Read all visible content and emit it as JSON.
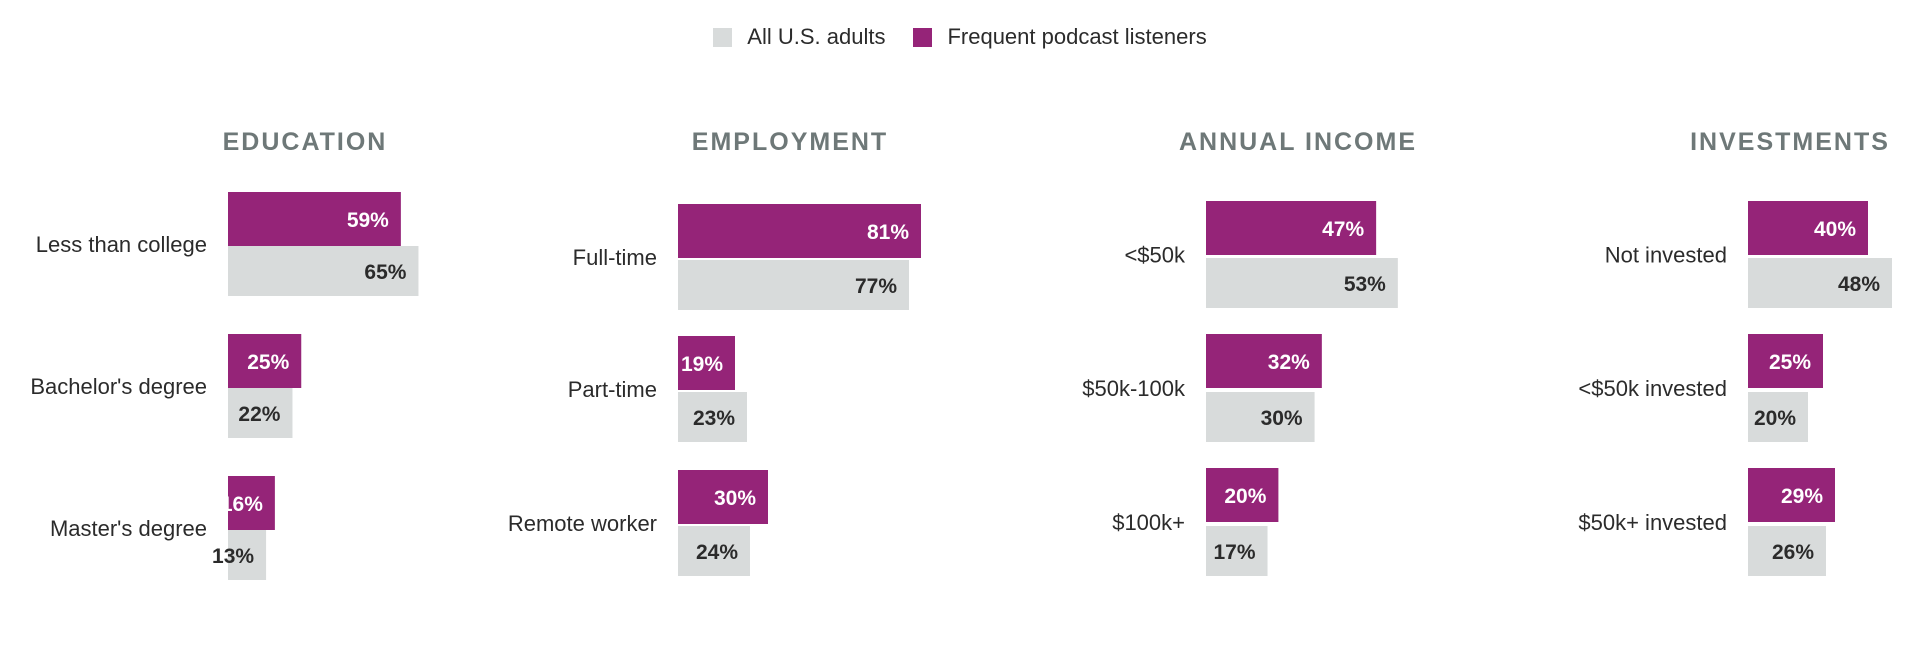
{
  "legend": [
    {
      "label": "All U.S. adults",
      "color": "#d8dbdb"
    },
    {
      "label": "Frequent podcast listeners",
      "color": "#952478"
    }
  ],
  "chart_data": [
    {
      "type": "bar",
      "orientation": "horizontal",
      "title": "EDUCATION",
      "categories": [
        "Less than college",
        "Bachelor's degree",
        "Master's degree"
      ],
      "series": [
        {
          "name": "Frequent podcast listeners",
          "values": [
            59,
            25,
            16
          ],
          "labels": [
            "59%",
            "25%",
            "16%"
          ]
        },
        {
          "name": "All U.S. adults",
          "values": [
            65,
            22,
            13
          ],
          "labels": [
            "65%",
            "22%",
            "13%"
          ]
        }
      ]
    },
    {
      "type": "bar",
      "orientation": "horizontal",
      "title": "EMPLOYMENT",
      "categories": [
        "Full-time",
        "Part-time",
        "Remote worker"
      ],
      "series": [
        {
          "name": "Frequent podcast listeners",
          "values": [
            81,
            19,
            30
          ],
          "labels": [
            "81%",
            "19%",
            "30%"
          ]
        },
        {
          "name": "All U.S. adults",
          "values": [
            77,
            23,
            24
          ],
          "labels": [
            "77%",
            "23%",
            "24%"
          ]
        }
      ]
    },
    {
      "type": "bar",
      "orientation": "horizontal",
      "title": "ANNUAL INCOME",
      "categories": [
        "<$50k",
        "$50k-100k",
        "$100k+"
      ],
      "series": [
        {
          "name": "Frequent podcast listeners",
          "values": [
            47,
            32,
            20
          ],
          "labels": [
            "47%",
            "32%",
            "20%"
          ]
        },
        {
          "name": "All U.S. adults",
          "values": [
            53,
            30,
            17
          ],
          "labels": [
            "53%",
            "30%",
            "17%"
          ]
        }
      ]
    },
    {
      "type": "bar",
      "orientation": "horizontal",
      "title": "INVESTMENTS",
      "categories": [
        "Not invested",
        "<$50k invested",
        "$50k+ invested"
      ],
      "series": [
        {
          "name": "Frequent podcast listeners",
          "values": [
            40,
            25,
            29
          ],
          "labels": [
            "40%",
            "25%",
            "29%"
          ]
        },
        {
          "name": "All U.S. adults",
          "values": [
            48,
            20,
            26
          ],
          "labels": [
            "48%",
            "20%",
            "26%"
          ]
        }
      ]
    }
  ]
}
